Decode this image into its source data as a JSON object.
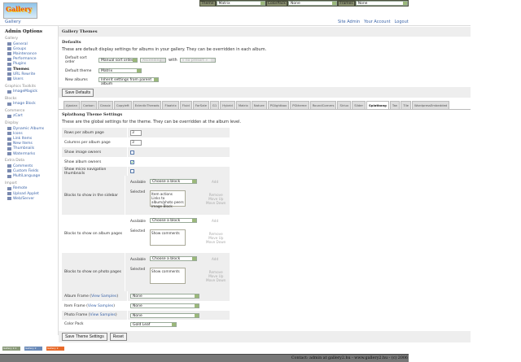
{
  "logo": "Gallery",
  "themebar": {
    "theme_label": "Theme",
    "theme": "Matrix",
    "colorpack_label": "ColorPack",
    "colorpack": "None",
    "frames_label": "Frames",
    "frames": "None"
  },
  "breadcrumb": "Gallery",
  "header_links": [
    "Site Admin",
    "Your Account",
    "Logout"
  ],
  "sidebar": {
    "title": "Admin Options",
    "groups": [
      {
        "name": "Gallery",
        "items": [
          "General",
          "Groups",
          "Maintenance",
          "Performance",
          "Plugins",
          "Themes",
          "URL Rewrite",
          "Users"
        ]
      },
      {
        "name": "Graphics Toolkits",
        "items": [
          "ImageMagick"
        ]
      },
      {
        "name": "Blocks",
        "items": [
          "Image Block"
        ]
      },
      {
        "name": "Commerce",
        "items": [
          "zCart"
        ]
      },
      {
        "name": "Display",
        "items": [
          "Dynamic Albums",
          "Icons",
          "Link Items",
          "New Items",
          "Thumbnails",
          "Watermarks"
        ]
      },
      {
        "name": "Extra Data",
        "items": [
          "Comments",
          "Custom Fields",
          "MultiLanguage"
        ]
      },
      {
        "name": "Import",
        "items": [
          "Remote",
          "Upload Applet",
          "Web/Server"
        ]
      }
    ],
    "current": "Themes"
  },
  "main": {
    "title": "Gallery Themes",
    "defaults": {
      "heading": "Defaults",
      "description": "These are default display settings for albums in your gallery. They can be overridden in each album.",
      "sort_label": "Default sort order",
      "sort": "Manual sort order",
      "direction": "Ascending",
      "with_label": "with",
      "presort": "« no presort »",
      "theme_label": "Default theme",
      "theme": "Matrix",
      "new_albums_label": "New albums",
      "new_albums": "Inherit settings from parent album",
      "save": "Save Defaults"
    },
    "tabs": [
      "Ajaxian",
      "Carbon",
      "Classic",
      "Copyleft",
      "EclecticThreads",
      "Floatrix",
      "Fluid",
      "ForSale",
      "G1",
      "Hybrid",
      "Matrix",
      "Nature",
      "PGlightbox",
      "PGtheme",
      "RoundCorners",
      "Siriux",
      "Slider",
      "Splatbang",
      "Tan",
      "Tile",
      "WordpressEmbedded"
    ],
    "active_tab": "Splatbang",
    "theme_settings": {
      "heading": "Splatbang Theme Settings",
      "description": "These are the global settings for the theme. They can be overridden at the album level.",
      "rows_label": "Rows per album page",
      "rows": "3",
      "cols_label": "Columns per album page",
      "cols": "3",
      "image_owners_label": "Show image owners",
      "image_owners": false,
      "album_owners_label": "Show album owners",
      "album_owners": true,
      "micro_label": "Show micro navigation thumbnails",
      "micro": false,
      "blocks": [
        {
          "label": "Blocks to show in the sidebar",
          "selected": [
            "Item actions",
            "Links to album/photo peers",
            "Image Block"
          ]
        },
        {
          "label": "Blocks to show on album pages",
          "selected": [
            "Show comments"
          ]
        },
        {
          "label": "Blocks to show on photo pages",
          "selected": [
            "Show comments"
          ]
        }
      ],
      "available_label": "Available",
      "available": "Choose a block",
      "selected_label": "Selected",
      "add": "Add",
      "remove": "Remove",
      "move_up": "Move Up",
      "move_down": "Move Down",
      "album_frame_label": "Album Frame",
      "item_frame_label": "Item Frame",
      "photo_frame_label": "Photo Frame",
      "view_samples": "View Samples",
      "album_frame": "None",
      "item_frame": "None",
      "photo_frame": "None",
      "color_pack_label": "Color Pack",
      "color_pack": "Gold Leaf",
      "save": "Save Theme Settings",
      "reset": "Reset"
    }
  },
  "badges": [
    "Gallery 2.1",
    "Gallery 2",
    "Gallery 2"
  ],
  "footer": "Contact: admin at gallery2.hu - www.gallery2.hu - (c) 2006"
}
